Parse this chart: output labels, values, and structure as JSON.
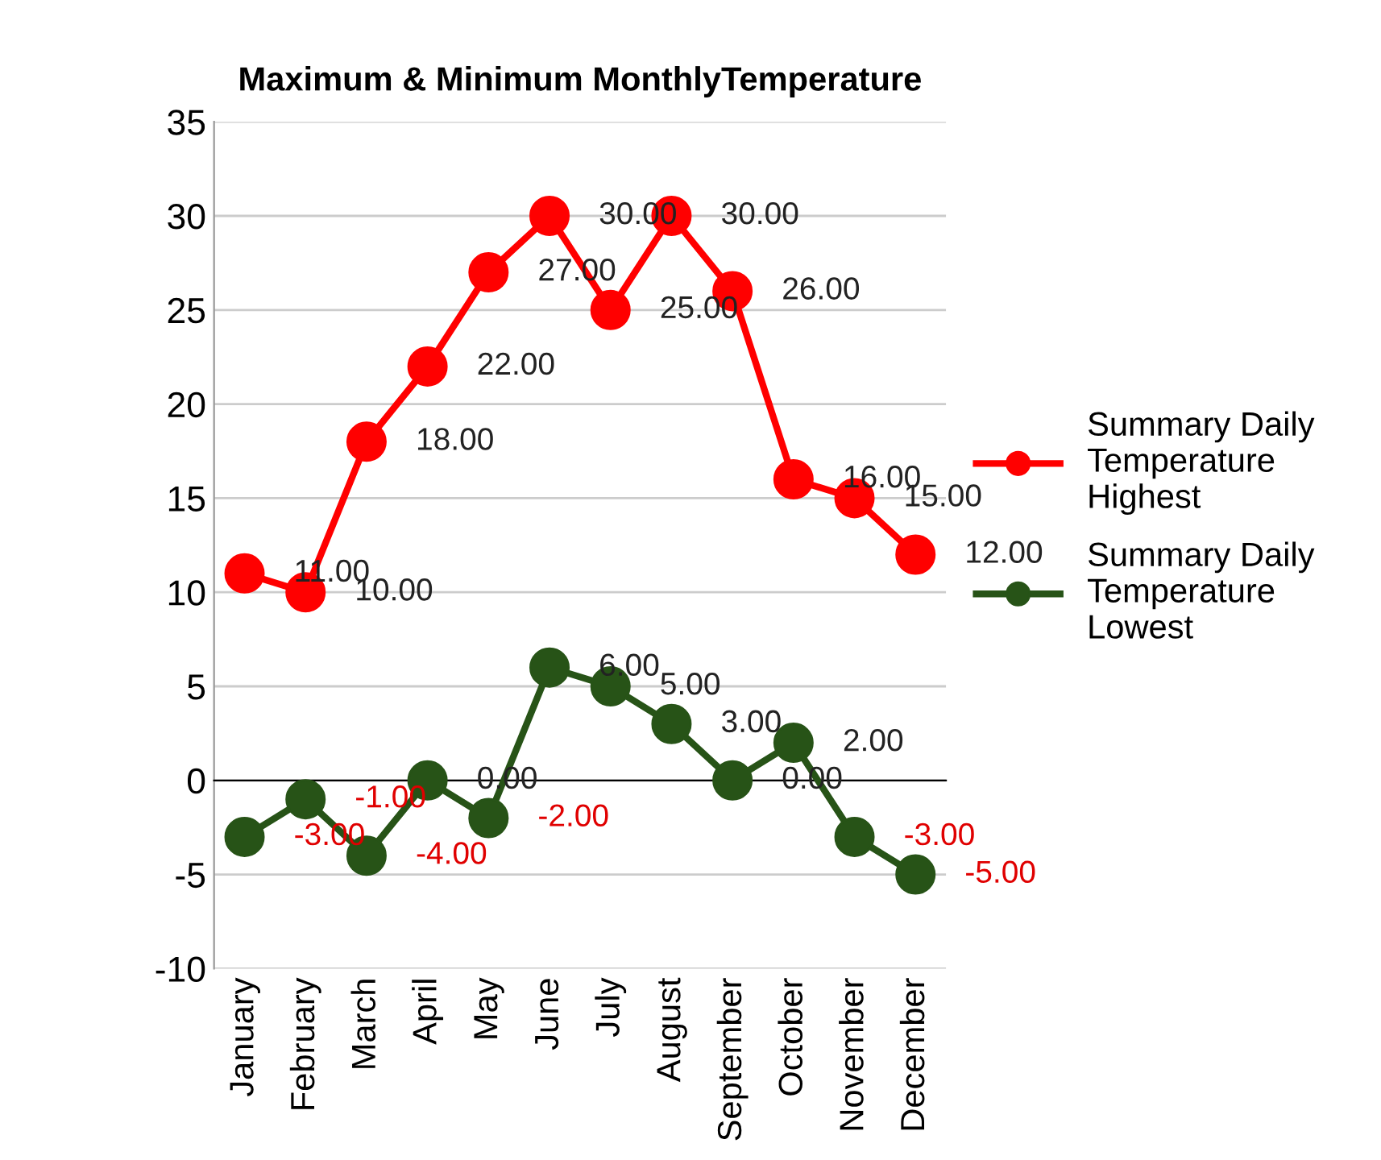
{
  "chart_data": {
    "type": "line",
    "title": "Maximum & Minimum MonthlyTemperature",
    "categories": [
      "January",
      "February",
      "March",
      "April",
      "May",
      "June",
      "July",
      "August",
      "September",
      "October",
      "November",
      "December"
    ],
    "series": [
      {
        "name": "Summary Daily Temperature Highest",
        "color": "#ff0000",
        "values": [
          11,
          10,
          18,
          22,
          27,
          30,
          25,
          30,
          26,
          16,
          15,
          12
        ],
        "value_labels": [
          "11.00",
          "10.00",
          "18.00",
          "22.00",
          "27.00",
          "30.00",
          "25.00",
          "30.00",
          "26.00",
          "16.00",
          "15.00",
          "12.00"
        ]
      },
      {
        "name": "Summary Daily Temperature Lowest",
        "color": "#275317",
        "values": [
          -3,
          -1,
          -4,
          0,
          -2,
          6,
          5,
          3,
          0,
          2,
          -3,
          -5
        ],
        "value_labels": [
          "-3.00",
          "-1.00",
          "-4.00",
          "0.00",
          "-2.00",
          "6.00",
          "5.00",
          "3.00",
          "0.00",
          "2.00",
          "-3.00",
          "-5.00"
        ]
      }
    ],
    "ylim": [
      -10,
      35
    ],
    "yticks": [
      -10,
      -5,
      0,
      5,
      10,
      15,
      20,
      25,
      30,
      35
    ],
    "grid": "y",
    "legend": "right",
    "marker": "circle",
    "line_style": "solid"
  }
}
